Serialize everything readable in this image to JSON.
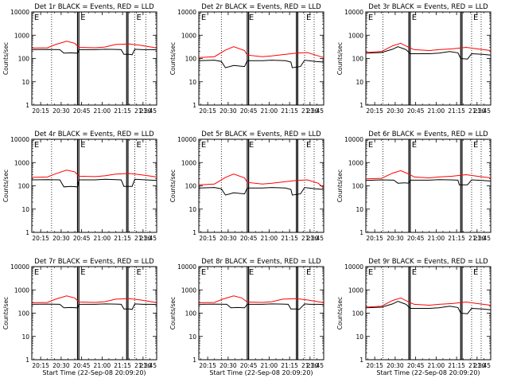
{
  "colors": {
    "background": "#ffffff",
    "axis": "#000000",
    "events": "#000000",
    "lld": "#ff0000"
  },
  "chart_data": {
    "type": "line",
    "grid_layout": "3x3",
    "xlabel": "Start Time (22-Sep-08 20:09:20)",
    "ylabel": "Counts/sec",
    "yscale": "log",
    "ylim": [
      1,
      10000
    ],
    "y_ticks": [
      "1",
      "10",
      "100",
      "1000",
      "10000"
    ],
    "x_range_minutes": [
      8.5,
      100
    ],
    "x_ticks": [
      {
        "label": "20:15",
        "min": 15
      },
      {
        "label": "20:30",
        "min": 30
      },
      {
        "label": "20:45",
        "min": 45
      },
      {
        "label": "21:00",
        "min": 60
      },
      {
        "label": "21:15",
        "min": 75
      },
      {
        "label": "21:30",
        "min": 90
      },
      {
        "label": "21:45",
        "min": 105
      }
    ],
    "series_names": [
      "Events",
      "LLD"
    ],
    "marker_letters": [
      "E",
      "E",
      "E"
    ],
    "panels": [
      {
        "title": "Det 1r BLACK = Events, RED = LLD",
        "show_xlabel": false,
        "dotted_lines": [
          23,
          84,
          92
        ],
        "solid_lines": [
          42,
          43,
          78,
          79
        ],
        "marker_x": [
          9,
          43,
          84
        ],
        "events": [
          [
            8.5,
            240
          ],
          [
            20,
            245
          ],
          [
            29,
            240
          ],
          [
            32,
            170
          ],
          [
            37,
            175
          ],
          [
            42,
            170
          ],
          [
            43,
            240
          ],
          [
            55,
            240
          ],
          [
            62,
            250
          ],
          [
            70,
            245
          ],
          [
            74,
            240
          ],
          [
            76,
            150
          ],
          [
            80,
            150
          ],
          [
            82,
            145
          ],
          [
            84,
            250
          ],
          [
            90,
            240
          ],
          [
            96,
            240
          ],
          [
            100,
            235
          ]
        ],
        "lld": [
          [
            8.5,
            280
          ],
          [
            20,
            290
          ],
          [
            26,
            400
          ],
          [
            34,
            550
          ],
          [
            40,
            450
          ],
          [
            43,
            300
          ],
          [
            55,
            290
          ],
          [
            62,
            310
          ],
          [
            70,
            400
          ],
          [
            80,
            420
          ],
          [
            88,
            370
          ],
          [
            96,
            310
          ],
          [
            100,
            280
          ]
        ]
      },
      {
        "title": "Det 2r BLACK = Events, RED = LLD",
        "show_xlabel": false,
        "dotted_lines": [
          25,
          86,
          93
        ],
        "solid_lines": [
          44,
          45,
          80,
          81
        ],
        "marker_x": [
          9,
          44,
          86
        ],
        "events": [
          [
            8.5,
            80
          ],
          [
            20,
            85
          ],
          [
            25,
            75
          ],
          [
            28,
            40
          ],
          [
            34,
            50
          ],
          [
            42,
            45
          ],
          [
            44,
            80
          ],
          [
            55,
            80
          ],
          [
            62,
            85
          ],
          [
            72,
            80
          ],
          [
            76,
            70
          ],
          [
            77,
            40
          ],
          [
            83,
            45
          ],
          [
            86,
            85
          ],
          [
            94,
            75
          ],
          [
            100,
            70
          ]
        ],
        "lld": [
          [
            8.5,
            110
          ],
          [
            20,
            120
          ],
          [
            28,
            230
          ],
          [
            34,
            320
          ],
          [
            42,
            220
          ],
          [
            44,
            140
          ],
          [
            55,
            120
          ],
          [
            62,
            130
          ],
          [
            72,
            150
          ],
          [
            80,
            170
          ],
          [
            88,
            180
          ],
          [
            96,
            130
          ],
          [
            100,
            110
          ]
        ]
      },
      {
        "title": "Det 3r BLACK = Events, RED = LLD",
        "show_xlabel": false,
        "dotted_lines": [
          21,
          86,
          93
        ],
        "solid_lines": [
          40,
          41,
          78,
          79
        ],
        "marker_x": [
          9,
          41,
          86
        ],
        "events": [
          [
            8.5,
            170
          ],
          [
            20,
            180
          ],
          [
            28,
            250
          ],
          [
            32,
            320
          ],
          [
            38,
            240
          ],
          [
            41,
            160
          ],
          [
            55,
            160
          ],
          [
            62,
            170
          ],
          [
            70,
            200
          ],
          [
            76,
            175
          ],
          [
            78,
            100
          ],
          [
            83,
            95
          ],
          [
            86,
            160
          ],
          [
            94,
            150
          ],
          [
            100,
            140
          ]
        ],
        "lld": [
          [
            8.5,
            180
          ],
          [
            20,
            200
          ],
          [
            28,
            350
          ],
          [
            34,
            450
          ],
          [
            40,
            300
          ],
          [
            44,
            240
          ],
          [
            55,
            220
          ],
          [
            62,
            240
          ],
          [
            72,
            260
          ],
          [
            82,
            300
          ],
          [
            90,
            260
          ],
          [
            100,
            220
          ]
        ]
      },
      {
        "title": "Det 4r BLACK = Events, RED = LLD",
        "show_xlabel": false,
        "dotted_lines": [
          23,
          84,
          92
        ],
        "solid_lines": [
          42,
          43,
          78,
          79
        ],
        "marker_x": [
          9,
          43,
          84
        ],
        "events": [
          [
            8.5,
            180
          ],
          [
            20,
            185
          ],
          [
            29,
            180
          ],
          [
            32,
            90
          ],
          [
            37,
            95
          ],
          [
            42,
            90
          ],
          [
            43,
            180
          ],
          [
            55,
            180
          ],
          [
            62,
            190
          ],
          [
            70,
            185
          ],
          [
            74,
            180
          ],
          [
            76,
            95
          ],
          [
            82,
            95
          ],
          [
            84,
            190
          ],
          [
            92,
            180
          ],
          [
            100,
            170
          ]
        ],
        "lld": [
          [
            8.5,
            230
          ],
          [
            20,
            240
          ],
          [
            26,
            330
          ],
          [
            34,
            470
          ],
          [
            40,
            400
          ],
          [
            43,
            260
          ],
          [
            55,
            250
          ],
          [
            62,
            270
          ],
          [
            70,
            320
          ],
          [
            80,
            340
          ],
          [
            88,
            300
          ],
          [
            96,
            260
          ],
          [
            100,
            240
          ]
        ]
      },
      {
        "title": "Det 5r BLACK = Events, RED = LLD",
        "show_xlabel": false,
        "dotted_lines": [
          25,
          86,
          93
        ],
        "solid_lines": [
          44,
          45,
          80,
          81
        ],
        "marker_x": [
          9,
          44,
          86
        ],
        "events": [
          [
            8.5,
            80
          ],
          [
            20,
            85
          ],
          [
            25,
            75
          ],
          [
            28,
            40
          ],
          [
            34,
            50
          ],
          [
            42,
            45
          ],
          [
            44,
            80
          ],
          [
            55,
            80
          ],
          [
            62,
            85
          ],
          [
            72,
            80
          ],
          [
            76,
            70
          ],
          [
            77,
            40
          ],
          [
            83,
            45
          ],
          [
            86,
            85
          ],
          [
            94,
            75
          ],
          [
            100,
            70
          ]
        ],
        "lld": [
          [
            8.5,
            110
          ],
          [
            20,
            120
          ],
          [
            28,
            230
          ],
          [
            34,
            320
          ],
          [
            42,
            220
          ],
          [
            44,
            140
          ],
          [
            55,
            120
          ],
          [
            62,
            130
          ],
          [
            72,
            150
          ],
          [
            80,
            170
          ],
          [
            88,
            180
          ],
          [
            96,
            130
          ],
          [
            100,
            80
          ]
        ]
      },
      {
        "title": "Det 6r BLACK = Events, RED = LLD",
        "show_xlabel": false,
        "dotted_lines": [
          21,
          86,
          93
        ],
        "solid_lines": [
          40,
          41,
          78,
          79
        ],
        "marker_x": [
          9,
          41,
          86
        ],
        "events": [
          [
            8.5,
            170
          ],
          [
            20,
            180
          ],
          [
            29,
            175
          ],
          [
            32,
            130
          ],
          [
            37,
            135
          ],
          [
            40,
            130
          ],
          [
            41,
            175
          ],
          [
            55,
            175
          ],
          [
            62,
            185
          ],
          [
            70,
            180
          ],
          [
            76,
            175
          ],
          [
            77,
            110
          ],
          [
            83,
            110
          ],
          [
            86,
            180
          ],
          [
            94,
            170
          ],
          [
            100,
            160
          ]
        ],
        "lld": [
          [
            8.5,
            200
          ],
          [
            20,
            210
          ],
          [
            28,
            350
          ],
          [
            34,
            450
          ],
          [
            40,
            320
          ],
          [
            44,
            240
          ],
          [
            55,
            220
          ],
          [
            62,
            240
          ],
          [
            72,
            260
          ],
          [
            82,
            300
          ],
          [
            90,
            260
          ],
          [
            100,
            220
          ]
        ]
      },
      {
        "title": "Det 7r BLACK = Events, RED = LLD",
        "show_xlabel": true,
        "dotted_lines": [
          23,
          84,
          92
        ],
        "solid_lines": [
          42,
          43,
          78,
          79
        ],
        "marker_x": [
          9,
          43,
          84
        ],
        "events": [
          [
            8.5,
            240
          ],
          [
            20,
            245
          ],
          [
            29,
            240
          ],
          [
            32,
            170
          ],
          [
            37,
            175
          ],
          [
            42,
            170
          ],
          [
            43,
            240
          ],
          [
            55,
            240
          ],
          [
            62,
            250
          ],
          [
            70,
            245
          ],
          [
            74,
            240
          ],
          [
            76,
            150
          ],
          [
            80,
            150
          ],
          [
            82,
            145
          ],
          [
            84,
            250
          ],
          [
            90,
            240
          ],
          [
            96,
            240
          ],
          [
            100,
            235
          ]
        ],
        "lld": [
          [
            8.5,
            280
          ],
          [
            20,
            290
          ],
          [
            26,
            400
          ],
          [
            34,
            550
          ],
          [
            40,
            450
          ],
          [
            43,
            300
          ],
          [
            55,
            290
          ],
          [
            62,
            310
          ],
          [
            70,
            400
          ],
          [
            80,
            420
          ],
          [
            88,
            370
          ],
          [
            96,
            310
          ],
          [
            100,
            280
          ]
        ]
      },
      {
        "title": "Det 8r BLACK = Events, RED = LLD",
        "show_xlabel": true,
        "dotted_lines": [
          25,
          86,
          93
        ],
        "solid_lines": [
          44,
          45,
          80,
          81
        ],
        "marker_x": [
          9,
          44,
          86
        ],
        "events": [
          [
            8.5,
            240
          ],
          [
            20,
            245
          ],
          [
            29,
            240
          ],
          [
            32,
            170
          ],
          [
            37,
            175
          ],
          [
            42,
            170
          ],
          [
            44,
            240
          ],
          [
            55,
            240
          ],
          [
            62,
            250
          ],
          [
            70,
            245
          ],
          [
            74,
            240
          ],
          [
            76,
            150
          ],
          [
            80,
            150
          ],
          [
            82,
            145
          ],
          [
            86,
            250
          ],
          [
            90,
            240
          ],
          [
            96,
            240
          ],
          [
            100,
            235
          ]
        ],
        "lld": [
          [
            8.5,
            280
          ],
          [
            20,
            290
          ],
          [
            26,
            400
          ],
          [
            34,
            550
          ],
          [
            40,
            450
          ],
          [
            44,
            300
          ],
          [
            55,
            290
          ],
          [
            62,
            310
          ],
          [
            70,
            400
          ],
          [
            80,
            420
          ],
          [
            88,
            370
          ],
          [
            96,
            310
          ],
          [
            100,
            280
          ]
        ]
      },
      {
        "title": "Det 9r BLACK = Events, RED = LLD",
        "show_xlabel": true,
        "dotted_lines": [
          21,
          86,
          93
        ],
        "solid_lines": [
          40,
          41,
          78,
          79
        ],
        "marker_x": [
          9,
          41,
          86
        ],
        "events": [
          [
            8.5,
            170
          ],
          [
            20,
            180
          ],
          [
            28,
            250
          ],
          [
            32,
            320
          ],
          [
            38,
            240
          ],
          [
            41,
            160
          ],
          [
            55,
            160
          ],
          [
            62,
            170
          ],
          [
            70,
            200
          ],
          [
            76,
            175
          ],
          [
            78,
            100
          ],
          [
            83,
            95
          ],
          [
            86,
            160
          ],
          [
            94,
            150
          ],
          [
            100,
            140
          ]
        ],
        "lld": [
          [
            8.5,
            180
          ],
          [
            20,
            200
          ],
          [
            28,
            350
          ],
          [
            34,
            450
          ],
          [
            40,
            300
          ],
          [
            44,
            240
          ],
          [
            55,
            220
          ],
          [
            62,
            240
          ],
          [
            72,
            260
          ],
          [
            82,
            300
          ],
          [
            90,
            260
          ],
          [
            100,
            220
          ]
        ]
      }
    ]
  }
}
